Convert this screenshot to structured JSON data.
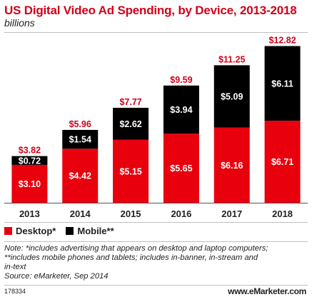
{
  "chart_data": {
    "type": "bar",
    "stacked": true,
    "title": "US Digital Video Ad Spending, by Device, 2013-2018",
    "subtitle": "billions",
    "categories": [
      "2013",
      "2014",
      "2015",
      "2016",
      "2017",
      "2018"
    ],
    "series": [
      {
        "name": "Desktop*",
        "color": "#e8000d",
        "values": [
          3.1,
          4.42,
          5.15,
          5.65,
          6.16,
          6.71
        ],
        "labels": [
          "$3.10",
          "$4.42",
          "$5.15",
          "$5.65",
          "$6.16",
          "$6.71"
        ]
      },
      {
        "name": "Mobile**",
        "color": "#000000",
        "values": [
          0.72,
          1.54,
          2.62,
          3.94,
          5.09,
          6.11
        ],
        "labels": [
          "$0.72",
          "$1.54",
          "$2.62",
          "$3.94",
          "$5.09",
          "$6.11"
        ]
      }
    ],
    "totals": [
      3.82,
      5.96,
      7.77,
      9.59,
      11.25,
      12.82
    ],
    "total_labels": [
      "$3.82",
      "$5.96",
      "$7.77",
      "$9.59",
      "$11.25",
      "$12.82"
    ],
    "ylim": [
      0,
      13.2
    ],
    "grid": false,
    "legend": "bottom-left"
  },
  "notes": [
    "Note: *includes advertising that appears on desktop and laptop computers;",
    "**includes mobile phones and tablets; includes in-banner, in-stream and",
    "in-text",
    "Source: eMarketer, Sep 2014"
  ],
  "footer": {
    "chart_id": "178334",
    "brand": "www.eMarketer.com"
  },
  "colors": {
    "title": "#d0021b",
    "desktop": "#e8000d",
    "mobile": "#000000",
    "total_label": "#d0021b"
  }
}
